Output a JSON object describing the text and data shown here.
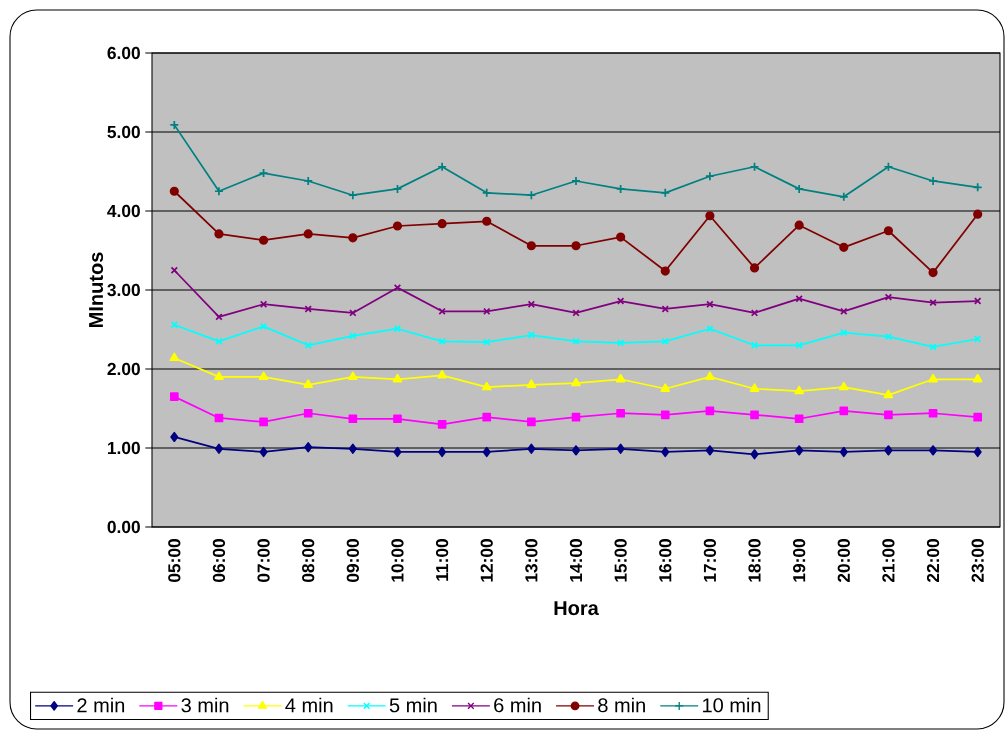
{
  "chart_data": {
    "type": "line",
    "xlabel": "Hora",
    "ylabel": "MInutos",
    "categories": [
      "05:00",
      "06:00",
      "07:00",
      "08:00",
      "09:00",
      "10:00",
      "11:00",
      "12:00",
      "13:00",
      "14:00",
      "15:00",
      "16:00",
      "17:00",
      "18:00",
      "19:00",
      "20:00",
      "21:00",
      "22:00",
      "23:00"
    ],
    "ylim": [
      0,
      6
    ],
    "yticks": [
      {
        "value": 0,
        "label": "0.00"
      },
      {
        "value": 1,
        "label": "1.00"
      },
      {
        "value": 2,
        "label": "2.00"
      },
      {
        "value": 3,
        "label": "3.00"
      },
      {
        "value": 4,
        "label": "4.00"
      },
      {
        "value": 5,
        "label": "5.00"
      },
      {
        "value": 6,
        "label": "6.00"
      }
    ],
    "grid": "y",
    "legend": "bottom",
    "series": [
      {
        "name": "2 min",
        "color": "#000080",
        "marker": "diamond",
        "values": [
          1.14,
          0.99,
          0.95,
          1.01,
          0.99,
          0.95,
          0.95,
          0.95,
          0.99,
          0.97,
          0.99,
          0.95,
          0.97,
          0.92,
          0.97,
          0.95,
          0.97,
          0.97,
          0.95
        ]
      },
      {
        "name": "3 min",
        "color": "#ff00ff",
        "marker": "square",
        "values": [
          1.65,
          1.38,
          1.33,
          1.44,
          1.37,
          1.37,
          1.3,
          1.39,
          1.33,
          1.39,
          1.44,
          1.42,
          1.47,
          1.42,
          1.37,
          1.47,
          1.42,
          1.44,
          1.39
        ]
      },
      {
        "name": "4 min",
        "color": "#ffff00",
        "marker": "triangle",
        "values": [
          2.14,
          1.9,
          1.9,
          1.8,
          1.9,
          1.87,
          1.92,
          1.77,
          1.8,
          1.82,
          1.87,
          1.75,
          1.9,
          1.75,
          1.72,
          1.77,
          1.67,
          1.87,
          1.87
        ]
      },
      {
        "name": "5 min",
        "color": "#00ffff",
        "marker": "cross",
        "values": [
          2.56,
          2.35,
          2.54,
          2.3,
          2.42,
          2.51,
          2.35,
          2.34,
          2.43,
          2.35,
          2.33,
          2.35,
          2.51,
          2.3,
          2.3,
          2.46,
          2.41,
          2.28,
          2.38
        ]
      },
      {
        "name": "6 min",
        "color": "#800080",
        "marker": "cross",
        "values": [
          3.25,
          2.66,
          2.82,
          2.76,
          2.71,
          3.03,
          2.73,
          2.73,
          2.82,
          2.71,
          2.86,
          2.76,
          2.82,
          2.71,
          2.89,
          2.73,
          2.91,
          2.84,
          2.86
        ]
      },
      {
        "name": "8 min",
        "color": "#800000",
        "marker": "circle",
        "values": [
          4.25,
          3.71,
          3.63,
          3.71,
          3.66,
          3.81,
          3.84,
          3.87,
          3.56,
          3.56,
          3.67,
          3.24,
          3.94,
          3.28,
          3.82,
          3.54,
          3.75,
          3.22,
          3.96
        ]
      },
      {
        "name": "10 min",
        "color": "#008080",
        "marker": "plus",
        "values": [
          5.09,
          4.25,
          4.48,
          4.38,
          4.2,
          4.28,
          4.56,
          4.23,
          4.2,
          4.38,
          4.28,
          4.23,
          4.44,
          4.56,
          4.28,
          4.18,
          4.56,
          4.38,
          4.3
        ]
      }
    ]
  }
}
